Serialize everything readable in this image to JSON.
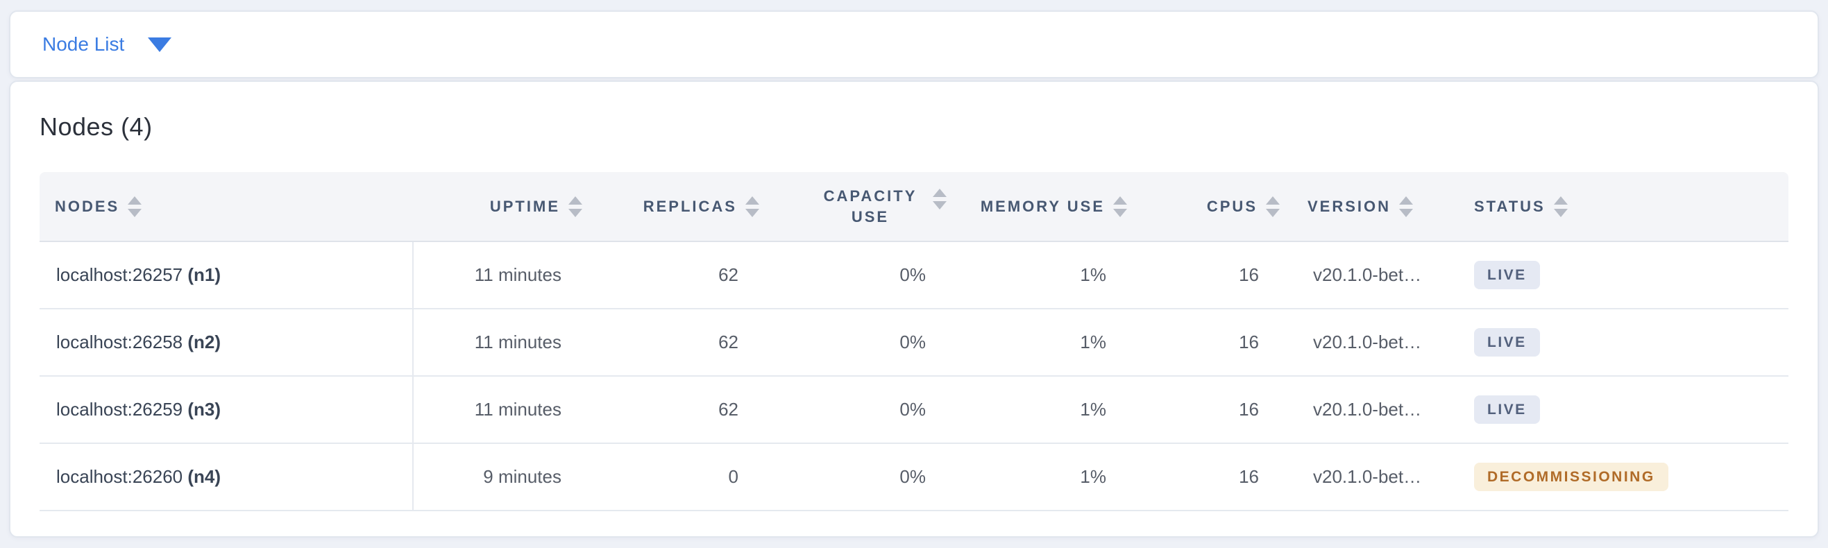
{
  "view_selector": {
    "label": "Node List",
    "icon": "chevron-down"
  },
  "summary": {
    "title": "Nodes (4)"
  },
  "table": {
    "columns": [
      {
        "key": "nodes",
        "label": "NODES",
        "align": "left",
        "sortable": true
      },
      {
        "key": "uptime",
        "label": "UPTIME",
        "align": "right",
        "sortable": true
      },
      {
        "key": "replicas",
        "label": "REPLICAS",
        "align": "right",
        "sortable": true
      },
      {
        "key": "capacity_use",
        "label": "CAPACITY USE",
        "align": "right",
        "sortable": true
      },
      {
        "key": "memory_use",
        "label": "MEMORY USE",
        "align": "right",
        "sortable": true
      },
      {
        "key": "cpus",
        "label": "CPUS",
        "align": "right",
        "sortable": true
      },
      {
        "key": "version",
        "label": "VERSION",
        "align": "left",
        "sortable": true
      },
      {
        "key": "status",
        "label": "STATUS",
        "align": "left",
        "sortable": true
      }
    ],
    "rows": [
      {
        "address": "localhost:26257",
        "node_id": "(n1)",
        "uptime": "11 minutes",
        "replicas": "62",
        "capacity_use": "0%",
        "memory_use": "1%",
        "cpus": "16",
        "version": "v20.1.0-bet…",
        "status": "LIVE",
        "status_type": "live"
      },
      {
        "address": "localhost:26258",
        "node_id": "(n2)",
        "uptime": "11 minutes",
        "replicas": "62",
        "capacity_use": "0%",
        "memory_use": "1%",
        "cpus": "16",
        "version": "v20.1.0-bet…",
        "status": "LIVE",
        "status_type": "live"
      },
      {
        "address": "localhost:26259",
        "node_id": "(n3)",
        "uptime": "11 minutes",
        "replicas": "62",
        "capacity_use": "0%",
        "memory_use": "1%",
        "cpus": "16",
        "version": "v20.1.0-bet…",
        "status": "LIVE",
        "status_type": "live"
      },
      {
        "address": "localhost:26260",
        "node_id": "(n4)",
        "uptime": "9 minutes",
        "replicas": "0",
        "capacity_use": "0%",
        "memory_use": "1%",
        "cpus": "16",
        "version": "v20.1.0-bet…",
        "status": "DECOMMISSIONING",
        "status_type": "decommissioning"
      }
    ]
  },
  "colors": {
    "accent_blue": "#3b7ce2",
    "header_text": "#475872",
    "header_background": "#f4f5f8",
    "live_badge_background": "#e5e9f3",
    "live_badge_text": "#52607c",
    "decommissioning_badge_background": "#f9efdb",
    "decommissioning_badge_text": "#b06b28",
    "page_background": "#eef1f7"
  },
  "icons": {
    "dropdown": "chevron-down-icon",
    "sort": "sort-arrows-icon"
  }
}
